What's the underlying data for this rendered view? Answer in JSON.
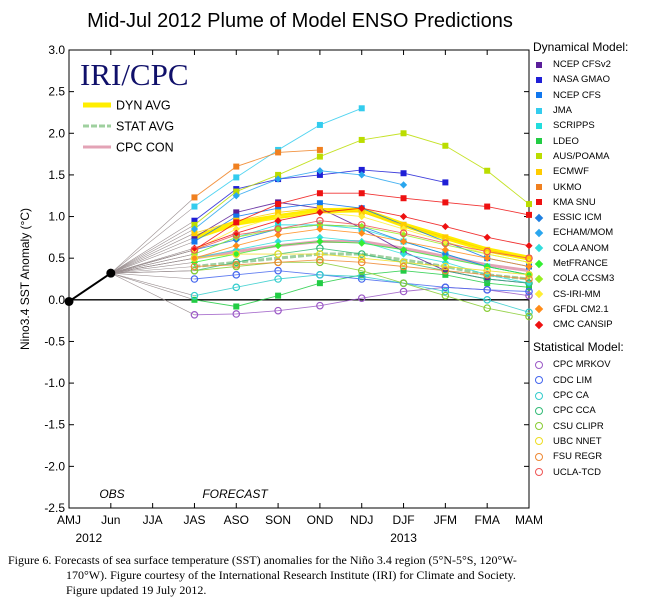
{
  "chart_data": {
    "type": "line",
    "title": "Mid-Jul 2012 Plume of Model ENSO Predictions",
    "ylabel": "Nino3.4 SST Anomaly (°C)",
    "xlabel": "",
    "categories": [
      "AMJ",
      "Jun",
      "JJA",
      "JAS",
      "ASO",
      "SON",
      "OND",
      "NDJ",
      "DJF",
      "JFM",
      "FMA",
      "MAM"
    ],
    "year_labels": [
      {
        "label": "2012",
        "at": "Jun"
      },
      {
        "label": "2013",
        "at": "DJF"
      }
    ],
    "y_ticks": [
      "3.0",
      "2.5",
      "2.0",
      "1.5",
      "1.0",
      "0.5",
      "0.0",
      "-0.5",
      "-1.0",
      "-1.5",
      "-2.0",
      "-2.5"
    ],
    "ylim": [
      -2.5,
      3.0
    ],
    "zero_line": true,
    "grid": false,
    "inset_logo": "IRI/CPC",
    "region_labels": {
      "obs": "OBS",
      "forecast": "FORECAST"
    },
    "observed": {
      "x": [
        "AMJ",
        "Jun"
      ],
      "values": [
        -0.02,
        0.32
      ]
    },
    "averages": [
      {
        "name": "DYN AVG",
        "color": "#ffee00",
        "values": [
          0.75,
          0.92,
          1.0,
          1.07,
          1.08,
          0.9,
          0.75,
          0.6,
          0.5
        ]
      },
      {
        "name": "STAT AVG",
        "color": "#9fd09f",
        "values": [
          0.4,
          0.45,
          0.5,
          0.55,
          0.55,
          0.48,
          0.4,
          0.3,
          0.25
        ]
      },
      {
        "name": "CPC CON",
        "color": "#e3a3b6",
        "values": [
          0.5,
          0.58,
          0.65,
          0.7,
          0.7,
          0.62,
          0.52,
          0.42,
          0.35
        ]
      }
    ],
    "legend": {
      "dynamical_title": "Dynamical Model:",
      "statistical_title": "Statistical Model:"
    },
    "dynamical": [
      {
        "name": "NCEP CFSv2",
        "color": "#5a1e9a",
        "values": [
          0.75,
          1.05,
          1.17,
          1.1,
          0.86,
          0.58,
          0.35,
          0.25,
          0.2
        ]
      },
      {
        "name": "NASA GMAO",
        "color": "#1f1fd6",
        "values": [
          0.95,
          1.33,
          1.45,
          1.5,
          1.56,
          1.52,
          1.41,
          null,
          null
        ]
      },
      {
        "name": "NCEP CFS",
        "color": "#1177ee",
        "values": [
          0.7,
          1.0,
          1.1,
          1.16,
          1.1,
          0.9,
          0.7,
          0.5,
          0.4
        ]
      },
      {
        "name": "JMA",
        "color": "#33ccee",
        "values": [
          1.12,
          1.47,
          1.8,
          2.1,
          2.3,
          null,
          null,
          null,
          null
        ]
      },
      {
        "name": "SCRIPPS",
        "color": "#22dddd",
        "values": [
          0.55,
          0.75,
          0.9,
          0.9,
          0.85,
          0.7,
          0.55,
          0.4,
          0.3
        ]
      },
      {
        "name": "LDEO",
        "color": "#22cc44",
        "values": [
          0.0,
          -0.08,
          0.05,
          0.2,
          0.3,
          0.35,
          0.3,
          0.2,
          0.15
        ]
      },
      {
        "name": "AUS/POAMA",
        "color": "#bbdd00",
        "values": [
          0.9,
          1.3,
          1.5,
          1.72,
          1.92,
          2.0,
          1.85,
          1.55,
          1.15
        ]
      },
      {
        "name": "ECMWF",
        "color": "#ffcc00",
        "values": [
          0.8,
          0.95,
          1.05,
          1.1,
          1.05,
          0.9,
          0.75,
          0.6,
          0.5
        ]
      },
      {
        "name": "UKMO",
        "color": "#f08020",
        "values": [
          1.23,
          1.6,
          1.77,
          1.8,
          null,
          null,
          null,
          null,
          null
        ]
      },
      {
        "name": "KMA SNU",
        "color": "#ee1111",
        "values": [
          0.6,
          0.93,
          1.15,
          1.28,
          1.28,
          1.22,
          1.17,
          1.12,
          1.02
        ]
      },
      {
        "name": "ESSIC ICM",
        "color": "#1e7fe0",
        "values": [
          0.6,
          0.72,
          0.85,
          0.9,
          0.88,
          0.7,
          0.55,
          0.4,
          0.3
        ]
      },
      {
        "name": "ECHAM/MOM",
        "color": "#2aa6ee",
        "values": [
          0.85,
          1.25,
          1.45,
          1.55,
          1.5,
          1.38,
          null,
          null,
          null
        ]
      },
      {
        "name": "COLA ANOM",
        "color": "#33dddd",
        "values": [
          0.5,
          0.6,
          0.7,
          0.75,
          0.7,
          0.55,
          0.45,
          0.3,
          0.2
        ]
      },
      {
        "name": "MetFRANCE",
        "color": "#33ee33",
        "values": [
          0.45,
          0.55,
          0.65,
          0.7,
          0.68,
          0.6,
          0.5,
          0.4,
          0.3
        ]
      },
      {
        "name": "COLA CCSM3",
        "color": "#99ee22",
        "values": [
          0.55,
          0.75,
          0.85,
          0.9,
          0.88,
          0.78,
          0.66,
          0.55,
          0.45
        ]
      },
      {
        "name": "CS-IRI-MM",
        "color": "#ffee33",
        "values": [
          0.6,
          0.85,
          1.0,
          1.05,
          1.0,
          0.85,
          0.7,
          0.55,
          0.45
        ]
      },
      {
        "name": "GFDL CM2.1",
        "color": "#ff8c1a",
        "values": [
          0.5,
          0.65,
          0.78,
          0.85,
          0.8,
          0.7,
          0.6,
          0.5,
          0.4
        ]
      },
      {
        "name": "CMC CANSIP",
        "color": "#ee1111",
        "values": [
          0.62,
          0.8,
          0.95,
          1.05,
          1.1,
          1.0,
          0.88,
          0.75,
          0.65
        ]
      }
    ],
    "statistical": [
      {
        "name": "CPC MRKOV",
        "color": "#9b59c6",
        "values": [
          -0.18,
          -0.17,
          -0.13,
          -0.07,
          0.02,
          0.1,
          0.15,
          0.12,
          0.05
        ]
      },
      {
        "name": "CDC LIM",
        "color": "#4466ee",
        "values": [
          0.25,
          0.3,
          0.35,
          0.3,
          0.25,
          0.2,
          0.15,
          0.12,
          0.1
        ]
      },
      {
        "name": "CPC CA",
        "color": "#33cccc",
        "values": [
          0.05,
          0.15,
          0.25,
          0.3,
          0.28,
          0.2,
          0.1,
          0.0,
          -0.15
        ]
      },
      {
        "name": "CPC CCA",
        "color": "#33bb77",
        "values": [
          0.35,
          0.45,
          0.55,
          0.62,
          0.55,
          0.45,
          0.35,
          0.25,
          0.2
        ]
      },
      {
        "name": "CSU CLIPR",
        "color": "#88cc33",
        "values": [
          0.35,
          0.4,
          0.45,
          0.45,
          0.35,
          0.2,
          0.05,
          -0.1,
          -0.2
        ]
      },
      {
        "name": "UBC NNET",
        "color": "#eedd22",
        "values": [
          0.5,
          0.55,
          0.55,
          0.55,
          0.5,
          0.45,
          0.4,
          0.35,
          0.3
        ]
      },
      {
        "name": "FSU REGR",
        "color": "#ee8833",
        "values": [
          0.4,
          0.42,
          0.45,
          0.48,
          0.45,
          0.4,
          0.35,
          0.3,
          0.25
        ]
      },
      {
        "name": "UCLA-TCD",
        "color": "#ee5555",
        "values": [
          0.6,
          0.78,
          0.85,
          0.95,
          0.9,
          0.8,
          0.68,
          0.58,
          0.5
        ]
      }
    ]
  },
  "caption": {
    "line1": "Figure 6. Forecasts of sea surface temperature (SST) anomalies for the Niño 3.4 region (5°N-5°S, 120°W-",
    "line2": "170°W).  Figure courtesy of the International Research Institute (IRI) for Climate and Society.",
    "line3": "Figure updated 19 July 2012."
  }
}
